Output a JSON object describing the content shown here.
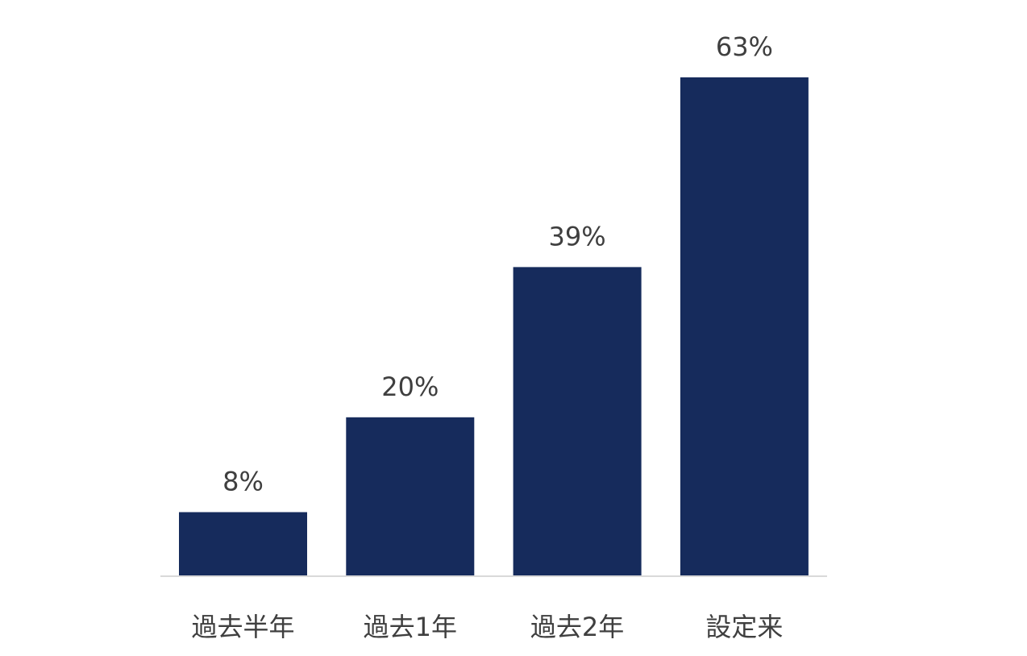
{
  "chart_data": {
    "type": "bar",
    "categories": [
      "過去半年",
      "過去1年",
      "過去2年",
      "設定来"
    ],
    "values": [
      8,
      20,
      39,
      63
    ],
    "value_labels": [
      "8%",
      "20%",
      "39%",
      "63%"
    ],
    "unit": "%",
    "title": "",
    "xlabel": "",
    "ylabel": "",
    "ylim": [
      0,
      63
    ],
    "grid": false,
    "legend": "none",
    "colors": {
      "bar": "#162b5c",
      "axis": "#d9d9d9",
      "text": "#3f3f3f"
    }
  }
}
